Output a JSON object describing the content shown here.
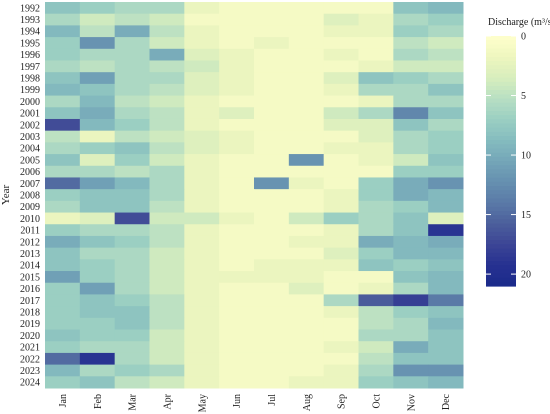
{
  "chart_data": {
    "type": "heatmap",
    "title": "",
    "xlabel": "",
    "ylabel": "Year",
    "x_categories": [
      "Jan",
      "Feb",
      "Mar",
      "Apr",
      "May",
      "Jun",
      "Jul",
      "Aug",
      "Sep",
      "Oct",
      "Nov",
      "Dec"
    ],
    "y_categories": [
      "1992",
      "1993",
      "1994",
      "1995",
      "1996",
      "1997",
      "1998",
      "1999",
      "2000",
      "2001",
      "2002",
      "2003",
      "2004",
      "2005",
      "2006",
      "2007",
      "2008",
      "2009",
      "2010",
      "2011",
      "2012",
      "2013",
      "2014",
      "2015",
      "2016",
      "2017",
      "2018",
      "2019",
      "2020",
      "2021",
      "2022",
      "2023",
      "2024"
    ],
    "values": [
      [
        8,
        7,
        6,
        6,
        2,
        1,
        1,
        1,
        1,
        1,
        8,
        9
      ],
      [
        6,
        4,
        5,
        4,
        1,
        1,
        1,
        1,
        3,
        2,
        6,
        7
      ],
      [
        9,
        5,
        10,
        5,
        2,
        1,
        1,
        1,
        2,
        2,
        7,
        6
      ],
      [
        7,
        12,
        6,
        4,
        2,
        1,
        2,
        1,
        1,
        1,
        5,
        4
      ],
      [
        7,
        6,
        6,
        10,
        3,
        2,
        1,
        1,
        2,
        1,
        6,
        5
      ],
      [
        6,
        5,
        6,
        5,
        4,
        2,
        1,
        1,
        1,
        2,
        4,
        4
      ],
      [
        8,
        11,
        6,
        6,
        3,
        2,
        1,
        1,
        3,
        8,
        7,
        6
      ],
      [
        9,
        8,
        6,
        5,
        3,
        2,
        1,
        1,
        2,
        6,
        6,
        8
      ],
      [
        6,
        9,
        5,
        4,
        2,
        1,
        1,
        1,
        1,
        2,
        6,
        6
      ],
      [
        8,
        10,
        6,
        5,
        2,
        3,
        1,
        1,
        4,
        6,
        13,
        8
      ],
      [
        17,
        9,
        7,
        5,
        2,
        1,
        1,
        1,
        3,
        3,
        8,
        6
      ],
      [
        5,
        2,
        5,
        4,
        3,
        2,
        1,
        1,
        1,
        3,
        6,
        7
      ],
      [
        6,
        7,
        8,
        5,
        3,
        2,
        1,
        1,
        2,
        2,
        6,
        7
      ],
      [
        8,
        3,
        7,
        4,
        2,
        1,
        1,
        12,
        1,
        2,
        4,
        8
      ],
      [
        6,
        6,
        5,
        6,
        2,
        1,
        1,
        1,
        1,
        1,
        7,
        7
      ],
      [
        15,
        11,
        9,
        6,
        2,
        1,
        12,
        2,
        1,
        7,
        10,
        12
      ],
      [
        7,
        8,
        8,
        6,
        2,
        1,
        1,
        1,
        2,
        7,
        10,
        9
      ],
      [
        6,
        8,
        8,
        5,
        2,
        1,
        1,
        1,
        2,
        6,
        7,
        9
      ],
      [
        2,
        3,
        17,
        4,
        4,
        2,
        1,
        4,
        7,
        6,
        8,
        3
      ],
      [
        7,
        6,
        6,
        5,
        2,
        1,
        1,
        1,
        2,
        6,
        8,
        19
      ],
      [
        10,
        8,
        7,
        5,
        2,
        1,
        1,
        2,
        2,
        10,
        9,
        10
      ],
      [
        8,
        6,
        6,
        4,
        2,
        1,
        1,
        1,
        3,
        7,
        9,
        9
      ],
      [
        8,
        7,
        6,
        4,
        2,
        1,
        2,
        2,
        2,
        8,
        7,
        8
      ],
      [
        11,
        7,
        6,
        4,
        2,
        2,
        2,
        2,
        1,
        1,
        8,
        9
      ],
      [
        7,
        11,
        6,
        4,
        2,
        1,
        1,
        3,
        1,
        2,
        6,
        9
      ],
      [
        7,
        8,
        7,
        5,
        2,
        1,
        1,
        1,
        6,
        16,
        18,
        14
      ],
      [
        7,
        8,
        8,
        5,
        2,
        1,
        1,
        1,
        2,
        5,
        7,
        8
      ],
      [
        7,
        7,
        8,
        5,
        2,
        1,
        1,
        1,
        1,
        5,
        6,
        9
      ],
      [
        8,
        7,
        7,
        4,
        2,
        1,
        1,
        1,
        1,
        6,
        6,
        8
      ],
      [
        7,
        6,
        6,
        4,
        2,
        1,
        1,
        1,
        2,
        4,
        10,
        8
      ],
      [
        15,
        19,
        6,
        4,
        2,
        1,
        1,
        1,
        1,
        5,
        8,
        8
      ],
      [
        9,
        6,
        7,
        6,
        2,
        1,
        1,
        1,
        2,
        6,
        12,
        12
      ],
      [
        7,
        8,
        5,
        4,
        2,
        1,
        1,
        2,
        2,
        7,
        8,
        9
      ]
    ],
    "colorscale": {
      "min": 0,
      "max": 21,
      "stops": [
        "#ffffcc",
        "#eef6bf",
        "#d8eebd",
        "#b8dfc3",
        "#9bcfc2",
        "#85bcbf",
        "#74a6b8",
        "#6690b0",
        "#5a7aa7",
        "#4c5f9c",
        "#3c4595",
        "#263191",
        "#1b2a8a"
      ]
    },
    "legend": {
      "title": "Discharge (m³/s)",
      "ticks": [
        "0",
        "5",
        "10",
        "15",
        "20"
      ],
      "tick_values": [
        0,
        5,
        10,
        15,
        20
      ],
      "placement": "right"
    }
  }
}
